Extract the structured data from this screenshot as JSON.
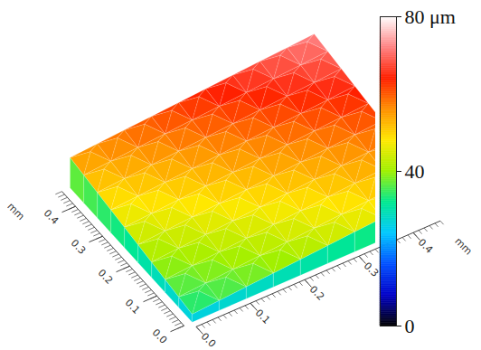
{
  "chart_data": {
    "type": "surface3d",
    "x_label": "mm",
    "y_label": "mm",
    "x": [
      0,
      0.05,
      0.1,
      0.15,
      0.2,
      0.25,
      0.3,
      0.35,
      0.4,
      0.45
    ],
    "y": [
      0,
      0.05,
      0.1,
      0.15,
      0.2,
      0.25,
      0.3,
      0.35,
      0.4,
      0.45
    ],
    "z": [
      [
        30,
        32,
        34,
        36,
        38,
        40,
        42,
        44,
        46,
        48
      ],
      [
        32.5,
        34.5,
        36.5,
        38.5,
        40.5,
        42.5,
        44.5,
        46.5,
        48.5,
        50.5
      ],
      [
        35,
        37,
        39,
        41,
        43,
        45,
        47,
        49,
        51,
        53
      ],
      [
        37.5,
        39.5,
        41.5,
        43.5,
        45.5,
        47.5,
        49.5,
        51.5,
        53.5,
        55.5
      ],
      [
        40,
        42,
        44,
        46,
        48,
        50,
        52,
        54,
        56,
        58
      ],
      [
        42.5,
        44.5,
        46.5,
        48.5,
        50.5,
        52.5,
        54.5,
        56.5,
        58.5,
        60.5
      ],
      [
        45,
        47,
        49,
        51,
        53,
        55,
        57,
        59,
        61,
        63
      ],
      [
        47.5,
        49.5,
        51.5,
        53.5,
        55.5,
        57.5,
        59.5,
        61.5,
        63.5,
        65.5
      ],
      [
        50,
        52,
        54,
        56,
        58,
        60,
        62,
        64,
        66,
        68
      ],
      [
        52.5,
        54.5,
        56.5,
        58.5,
        60.5,
        62.5,
        64.5,
        66.5,
        68.5,
        70.5
      ]
    ],
    "peak_z": [
      [
        40,
        42,
        44,
        46,
        48,
        50,
        52,
        54,
        56
      ],
      [
        42.5,
        44.5,
        46.5,
        48.5,
        50.5,
        52.5,
        54.5,
        56.5,
        58.5
      ],
      [
        45,
        47,
        49,
        51,
        53,
        55,
        57,
        59,
        61
      ],
      [
        47.5,
        49.5,
        51.5,
        53.5,
        55.5,
        57.5,
        59.5,
        61.5,
        63.5
      ],
      [
        50,
        52,
        54,
        56,
        58,
        60,
        62,
        64,
        66
      ],
      [
        52.5,
        54.5,
        56.5,
        58.5,
        60.5,
        62.5,
        64.5,
        66.5,
        68.5
      ],
      [
        55,
        57,
        59,
        61,
        63,
        65,
        67,
        69,
        71
      ],
      [
        57.5,
        59.5,
        61.5,
        63.5,
        65.5,
        67.5,
        69.5,
        71.5,
        73.5
      ],
      [
        60,
        62,
        64,
        66,
        68,
        70,
        72,
        74,
        76
      ]
    ],
    "base_z": 22,
    "xlim": [
      0,
      0.45
    ],
    "ylim": [
      0,
      0.45
    ],
    "xticks": [
      {
        "value": 0,
        "label": "0.0"
      },
      0.1,
      0.2,
      0.3,
      0.4
    ],
    "yticks": [
      {
        "value": 0,
        "label": "0.0"
      },
      0.1,
      0.2,
      0.3,
      0.4
    ],
    "colorbar": {
      "range": [
        0,
        80
      ],
      "ticks": [
        0,
        40,
        {
          "value": 80,
          "label": "80 μm"
        }
      ]
    }
  }
}
